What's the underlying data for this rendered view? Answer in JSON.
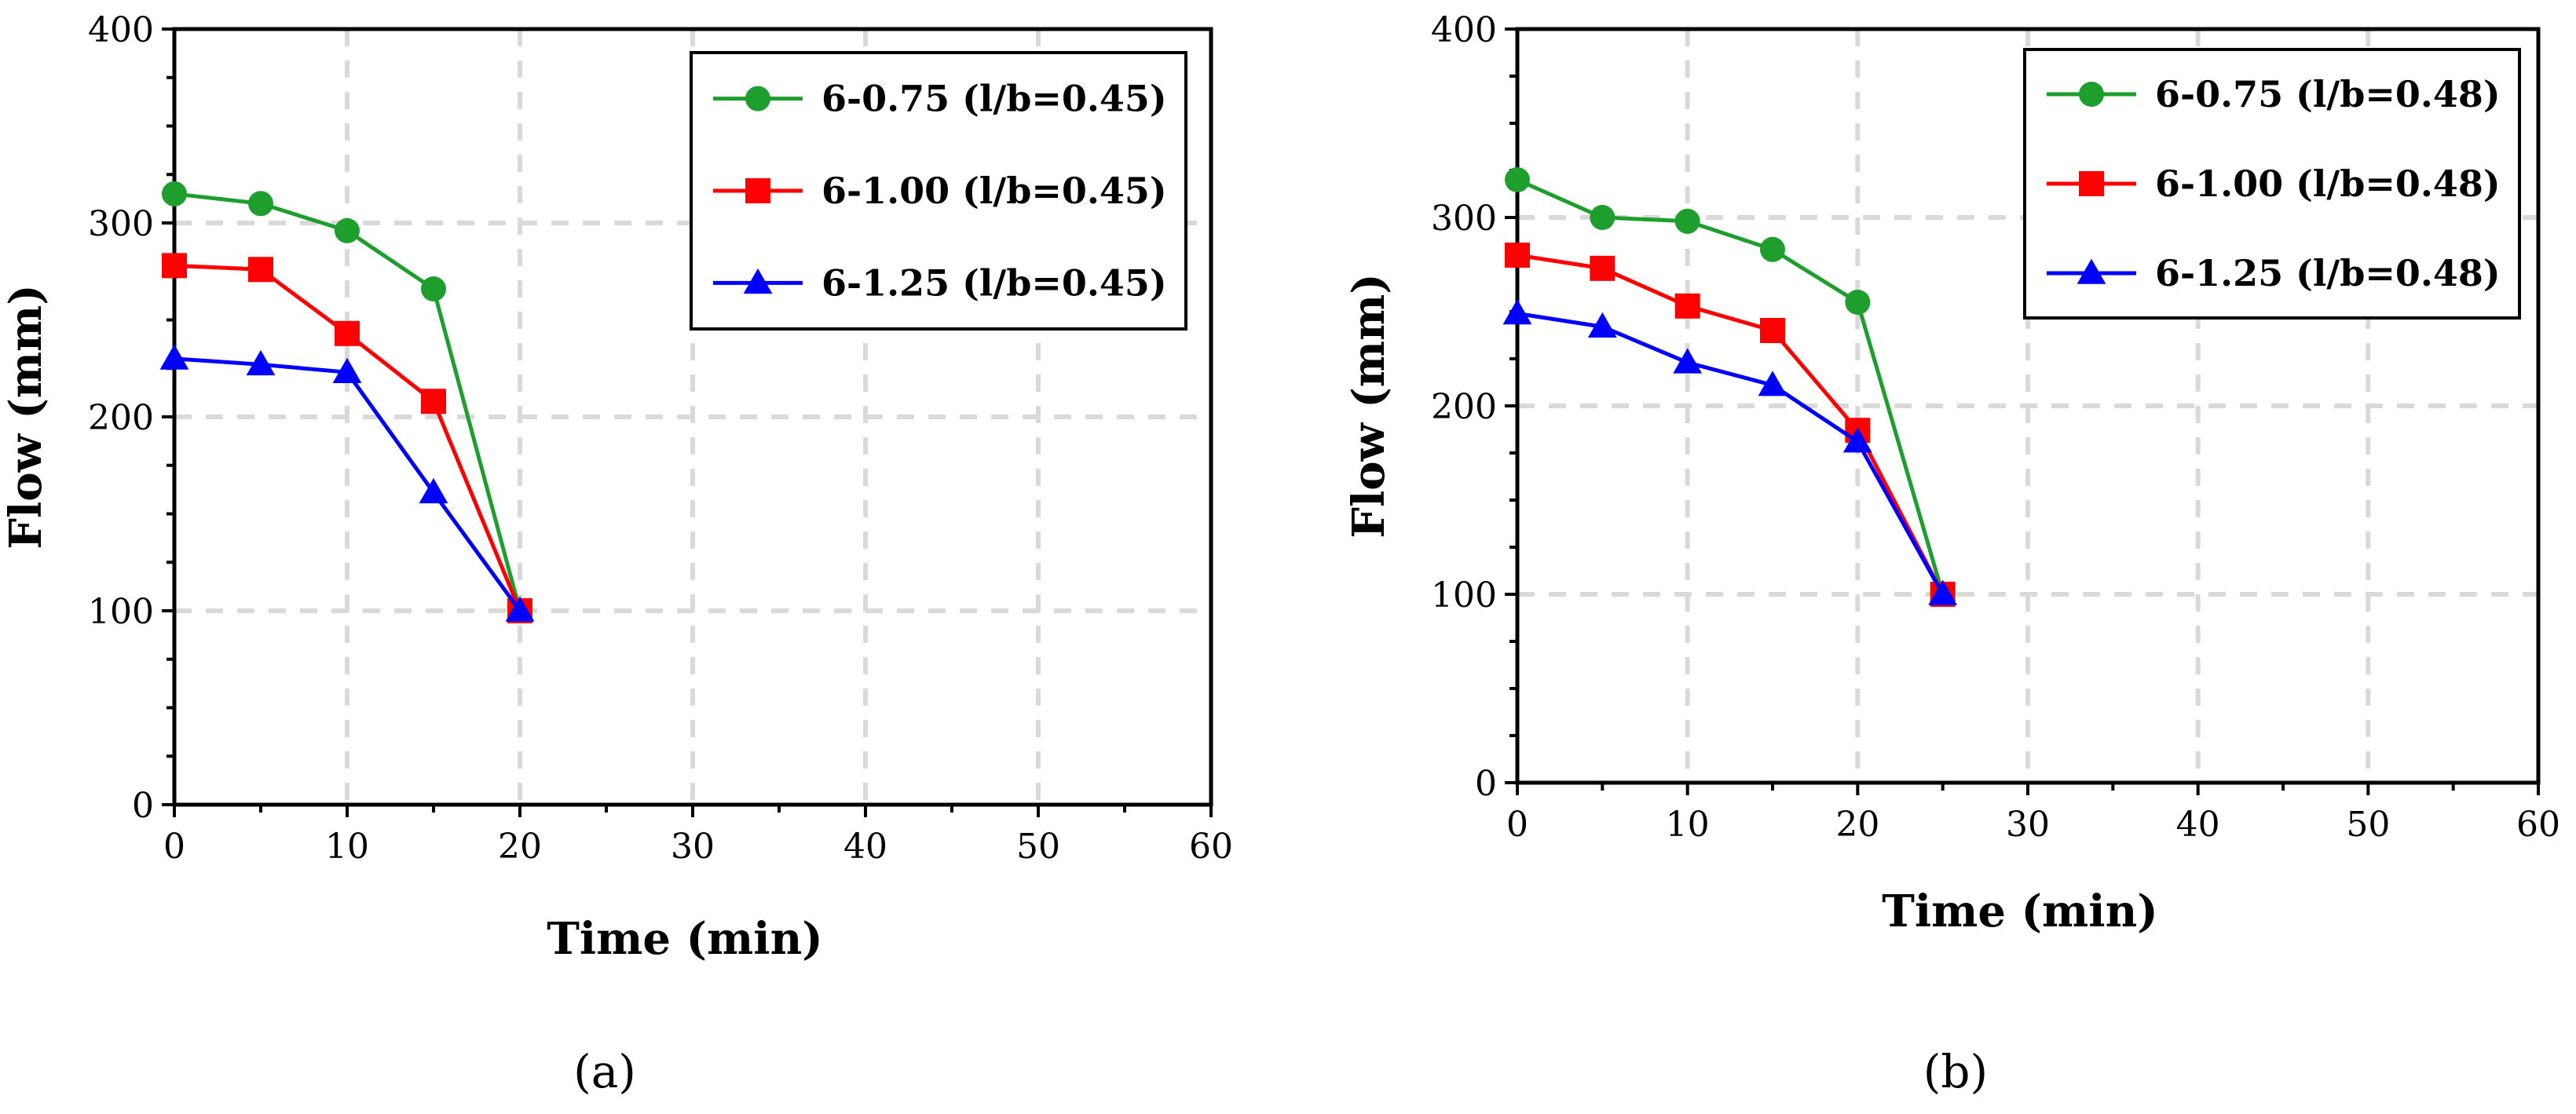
{
  "figure": {
    "caption_a": "(a)",
    "caption_b": "(b)"
  },
  "colors": {
    "green": "#1e9e2c",
    "red": "#ff0000",
    "blue": "#0000ff",
    "grid": "#d9d9d9",
    "axis": "#000000"
  },
  "chart_data": [
    {
      "type": "line",
      "panel": "(a)",
      "title": "",
      "xlabel": "Time (min)",
      "ylabel": "Flow (mm)",
      "xlim": [
        0,
        60
      ],
      "ylim": [
        0,
        400
      ],
      "xticks": [
        0,
        10,
        20,
        30,
        40,
        50,
        60
      ],
      "yticks": [
        0,
        100,
        200,
        300,
        400
      ],
      "grid": true,
      "legend_position": "top-right",
      "series": [
        {
          "name": "6-0.75 (l/b=0.45)",
          "color": "#1e9e2c",
          "marker": "circle",
          "x": [
            0,
            5,
            10,
            15,
            20
          ],
          "y": [
            315,
            310,
            296,
            266,
            100
          ]
        },
        {
          "name": "6-1.00 (l/b=0.45)",
          "color": "#ff0000",
          "marker": "square",
          "x": [
            0,
            5,
            10,
            15,
            20
          ],
          "y": [
            278,
            276,
            243,
            208,
            100
          ]
        },
        {
          "name": "6-1.25 (l/b=0.45)",
          "color": "#0000ff",
          "marker": "triangle",
          "x": [
            0,
            5,
            10,
            15,
            20
          ],
          "y": [
            230,
            227,
            223,
            161,
            100
          ]
        }
      ]
    },
    {
      "type": "line",
      "panel": "(b)",
      "title": "",
      "xlabel": "Time (min)",
      "ylabel": "Flow (mm)",
      "xlim": [
        0,
        60
      ],
      "ylim": [
        0,
        400
      ],
      "xticks": [
        0,
        10,
        20,
        30,
        40,
        50,
        60
      ],
      "yticks": [
        0,
        100,
        200,
        300,
        400
      ],
      "grid": true,
      "legend_position": "top-right",
      "series": [
        {
          "name": "6-0.75 (l/b=0.48)",
          "color": "#1e9e2c",
          "marker": "circle",
          "x": [
            0,
            5,
            10,
            15,
            20,
            25
          ],
          "y": [
            320,
            300,
            298,
            283,
            255,
            100
          ]
        },
        {
          "name": "6-1.00 (l/b=0.48)",
          "color": "#ff0000",
          "marker": "square",
          "x": [
            0,
            5,
            10,
            15,
            20,
            25
          ],
          "y": [
            280,
            273,
            253,
            240,
            187,
            100
          ]
        },
        {
          "name": "6-1.25 (l/b=0.48)",
          "color": "#0000ff",
          "marker": "triangle",
          "x": [
            0,
            5,
            10,
            15,
            20,
            25
          ],
          "y": [
            249,
            242,
            223,
            211,
            181,
            100
          ]
        }
      ]
    }
  ]
}
